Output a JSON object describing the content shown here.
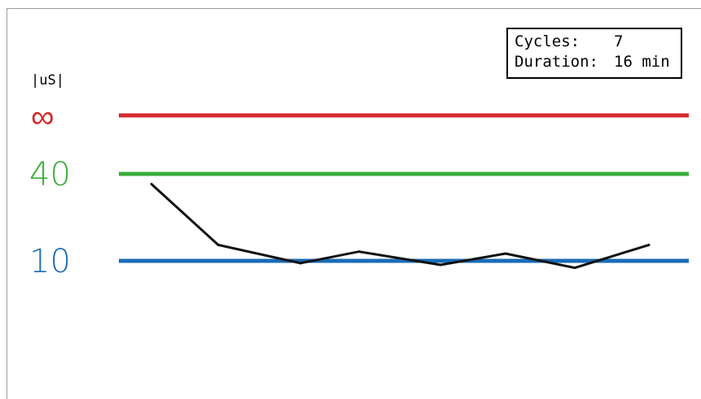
{
  "chart_data": {
    "type": "line",
    "ylabel": "|uS|",
    "reference_lines": [
      {
        "label": "∞",
        "color": "#d42b2b"
      },
      {
        "label": "40",
        "color": "#3aac3a"
      },
      {
        "label": "10",
        "color": "#1a6cb5"
      }
    ],
    "series": [
      {
        "color": "#111111",
        "x": [
          1,
          2,
          3,
          4,
          5,
          6,
          7,
          8
        ],
        "y": [
          36.5,
          15.5,
          9.2,
          13.2,
          8.6,
          12.5,
          7.6,
          15.5
        ]
      }
    ]
  },
  "info": {
    "cycles_label": "Cycles:",
    "cycles_value": "7",
    "duration_label": "Duration:",
    "duration_value": "16 min"
  }
}
